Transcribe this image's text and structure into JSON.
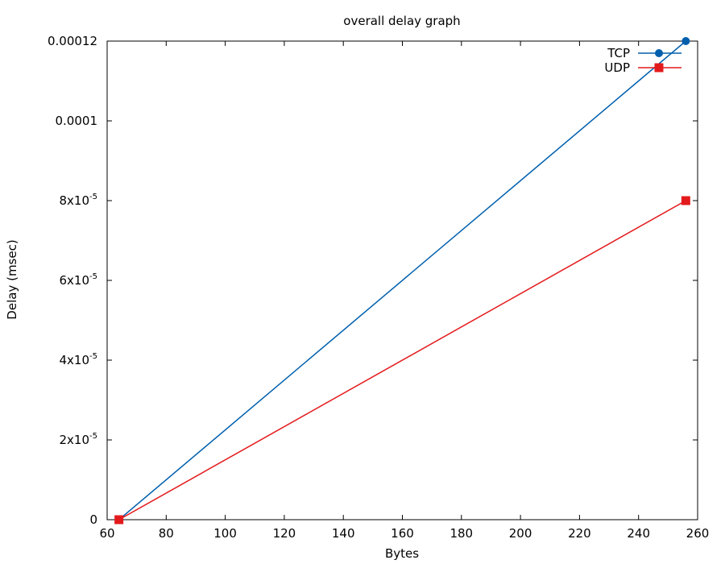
{
  "chart_data": {
    "type": "line",
    "title": "overall delay graph",
    "xlabel": "Bytes",
    "ylabel": "Delay (msec)",
    "xlim": [
      60,
      260
    ],
    "ylim": [
      0,
      0.00012
    ],
    "x_ticks": [
      {
        "value": 60,
        "label": "60"
      },
      {
        "value": 80,
        "label": "80"
      },
      {
        "value": 100,
        "label": "100"
      },
      {
        "value": 120,
        "label": "120"
      },
      {
        "value": 140,
        "label": "140"
      },
      {
        "value": 160,
        "label": "160"
      },
      {
        "value": 180,
        "label": "180"
      },
      {
        "value": 200,
        "label": "200"
      },
      {
        "value": 220,
        "label": "220"
      },
      {
        "value": 240,
        "label": "240"
      },
      {
        "value": 260,
        "label": "260"
      }
    ],
    "y_ticks": [
      {
        "value": 0,
        "mantissa": "0",
        "exponent": ""
      },
      {
        "value": 2e-05,
        "mantissa": "2x10",
        "exponent": "-5"
      },
      {
        "value": 4e-05,
        "mantissa": "4x10",
        "exponent": "-5"
      },
      {
        "value": 6e-05,
        "mantissa": "6x10",
        "exponent": "-5"
      },
      {
        "value": 8e-05,
        "mantissa": "8x10",
        "exponent": "-5"
      },
      {
        "value": 0.0001,
        "mantissa": "0.0001",
        "exponent": ""
      },
      {
        "value": 0.00012,
        "mantissa": "0.00012",
        "exponent": ""
      }
    ],
    "legend_position": "top-right",
    "grid": false,
    "series": [
      {
        "name": "TCP",
        "color": "#005fad",
        "marker": "circle",
        "x": [
          64,
          256
        ],
        "y": [
          0,
          0.00012
        ]
      },
      {
        "name": "UDP",
        "color": "#e31a1c",
        "marker": "square",
        "x": [
          64,
          256
        ],
        "y": [
          0,
          8e-05
        ]
      }
    ]
  }
}
